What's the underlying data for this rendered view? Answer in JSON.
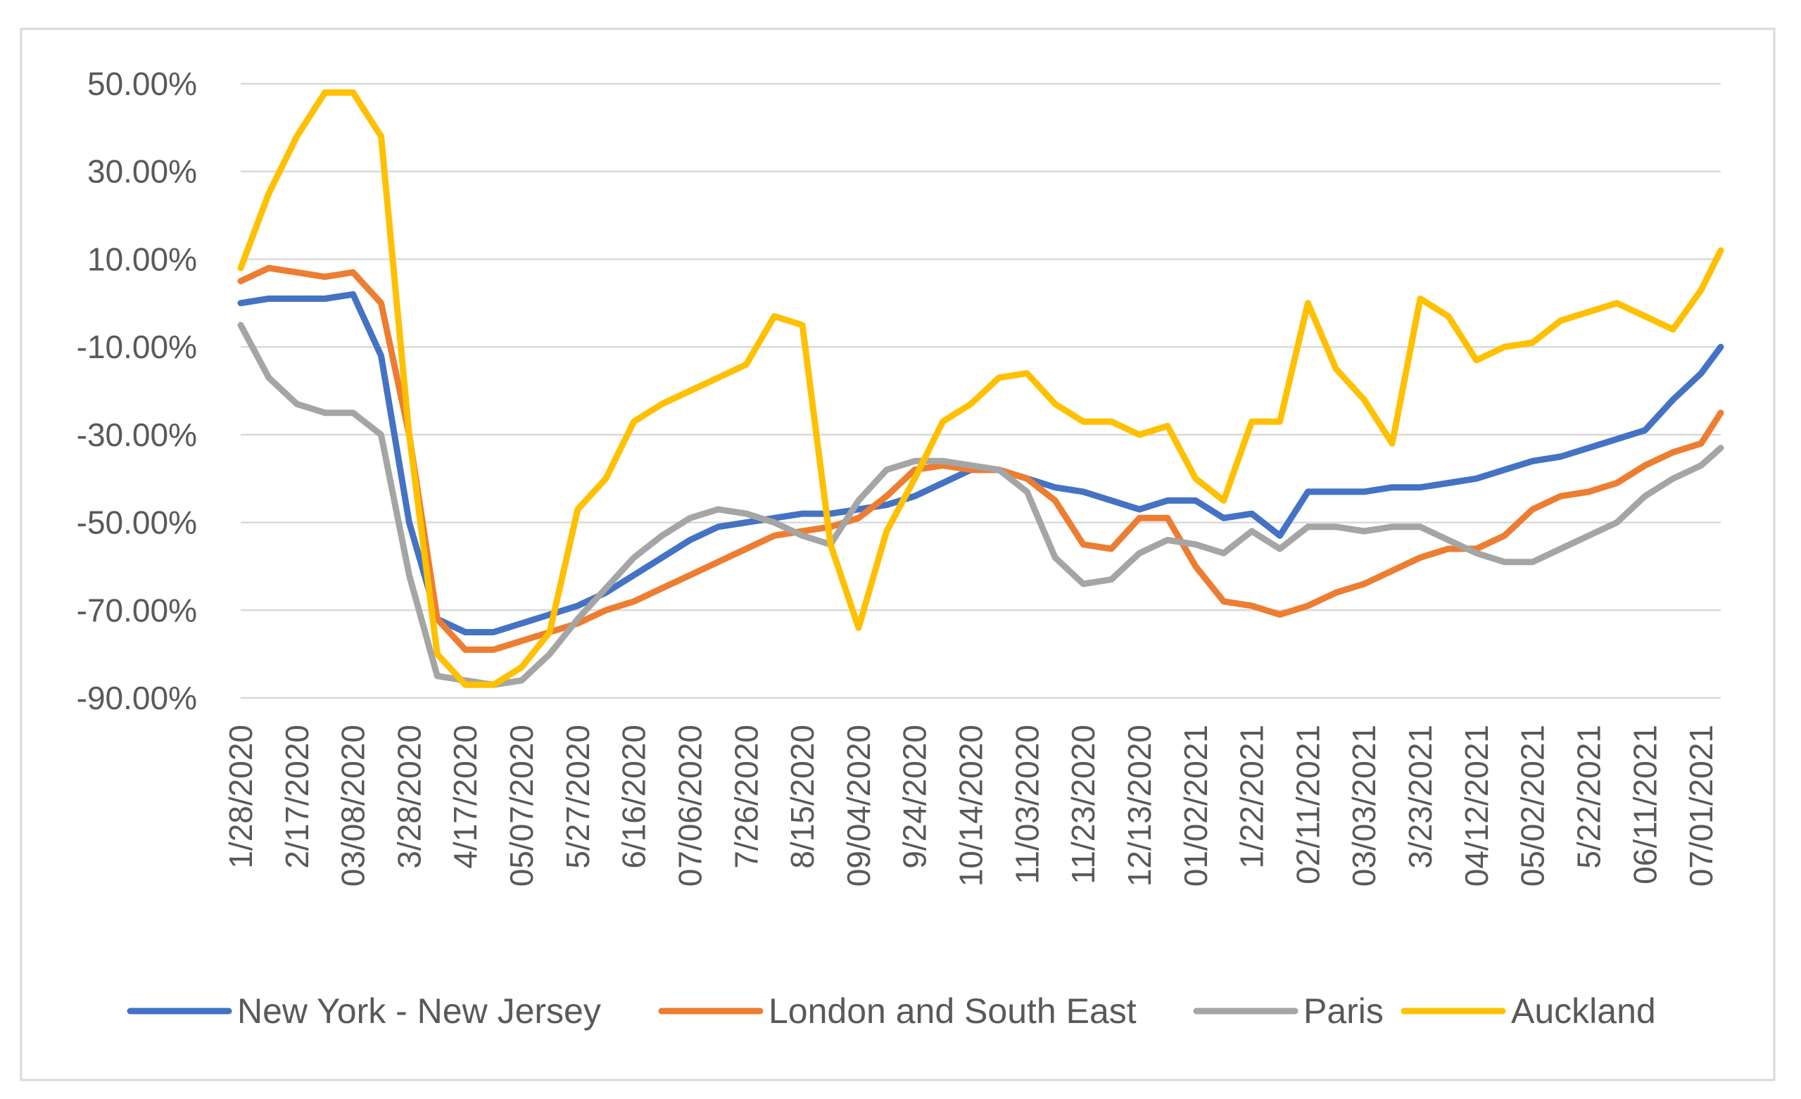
{
  "chart_data": {
    "type": "line",
    "title": "",
    "xlabel": "",
    "ylabel": "",
    "ylim": [
      -90,
      50
    ],
    "y_ticks": [
      "50.00%",
      "30.00%",
      "10.00%",
      "-10.00%",
      "-30.00%",
      "-50.00%",
      "-70.00%",
      "-90.00%"
    ],
    "y_tick_values": [
      50,
      30,
      10,
      -10,
      -30,
      -50,
      -70,
      -90
    ],
    "x_tick_labels": [
      "1/28/2020",
      "2/17/2020",
      "03/08/2020",
      "3/28/2020",
      "4/17/2020",
      "05/07/2020",
      "5/27/2020",
      "6/16/2020",
      "07/06/2020",
      "7/26/2020",
      "8/15/2020",
      "09/04/2020",
      "9/24/2020",
      "10/14/2020",
      "11/03/2020",
      "11/23/2020",
      "12/13/2020",
      "01/02/2021",
      "1/22/2021",
      "02/11/2021",
      "03/03/2021",
      "3/23/2021",
      "04/12/2021",
      "05/02/2021",
      "5/22/2021",
      "06/11/2021",
      "07/01/2021"
    ],
    "x_days_range": [
      0,
      527
    ],
    "x_step_days": 10,
    "grid": true,
    "legend_position": "bottom",
    "series": [
      {
        "name": "New York - New Jersey",
        "color": "#4472C4",
        "values": [
          0,
          1,
          1,
          1,
          2,
          -12,
          -50,
          -72,
          -75,
          -75,
          -73,
          -71,
          -69,
          -66,
          -62,
          -58,
          -54,
          -51,
          -50,
          -49,
          -48,
          -48,
          -47,
          -46,
          -44,
          -41,
          -38,
          -38,
          -40,
          -42,
          -43,
          -45,
          -47,
          -45,
          -45,
          -49,
          -48,
          -53,
          -43,
          -43,
          -43,
          -42,
          -42,
          -41,
          -40,
          -38,
          -36,
          -35,
          -33,
          -31,
          -29,
          -22,
          -16,
          -10
        ]
      },
      {
        "name": "London and South East",
        "color": "#ED7D31",
        "values": [
          5,
          8,
          7,
          6,
          7,
          0,
          -30,
          -72,
          -79,
          -79,
          -77,
          -75,
          -73,
          -70,
          -68,
          -65,
          -62,
          -59,
          -56,
          -53,
          -52,
          -51,
          -49,
          -44,
          -38,
          -37,
          -38,
          -38,
          -40,
          -45,
          -55,
          -56,
          -49,
          -49,
          -60,
          -68,
          -69,
          -71,
          -69,
          -66,
          -64,
          -61,
          -58,
          -56,
          -56,
          -53,
          -47,
          -44,
          -43,
          -41,
          -37,
          -34,
          -32,
          -25
        ]
      },
      {
        "name": "Paris",
        "color": "#A5A5A5",
        "values": [
          -5,
          -17,
          -23,
          -25,
          -25,
          -30,
          -62,
          -85,
          -86,
          -87,
          -86,
          -80,
          -72,
          -65,
          -58,
          -53,
          -49,
          -47,
          -48,
          -50,
          -53,
          -55,
          -45,
          -38,
          -36,
          -36,
          -37,
          -38,
          -43,
          -58,
          -64,
          -63,
          -57,
          -54,
          -55,
          -57,
          -52,
          -56,
          -51,
          -51,
          -52,
          -51,
          -51,
          -54,
          -57,
          -59,
          -59,
          -56,
          -53,
          -50,
          -44,
          -40,
          -37,
          -33
        ]
      },
      {
        "name": "Auckland",
        "color": "#FFC000",
        "values": [
          8,
          25,
          38,
          48,
          48,
          38,
          -30,
          -80,
          -87,
          -87,
          -83,
          -75,
          -47,
          -40,
          -27,
          -23,
          -20,
          -17,
          -14,
          -3,
          -5,
          -55,
          -74,
          -52,
          -40,
          -27,
          -23,
          -17,
          -16,
          -23,
          -27,
          -27,
          -30,
          -28,
          -40,
          -45,
          -27,
          -27,
          0,
          -15,
          -22,
          -32,
          1,
          -3,
          -13,
          -10,
          -9,
          -4,
          -2,
          0,
          -3,
          -6,
          3,
          12
        ]
      }
    ]
  }
}
